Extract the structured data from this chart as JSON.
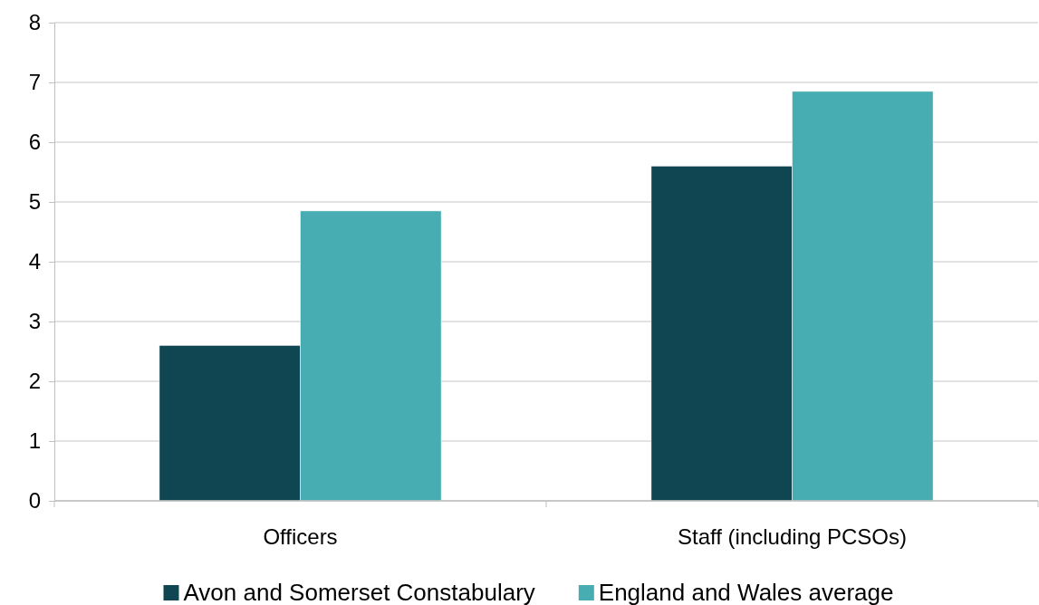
{
  "chart_data": {
    "type": "bar",
    "categories": [
      "Officers",
      "Staff (including PCSOs)"
    ],
    "series": [
      {
        "name": "Avon and Somerset Constabulary",
        "color": "#104652",
        "values": [
          2.6,
          5.6
        ]
      },
      {
        "name": "England and Wales average",
        "color": "#48adb2",
        "values": [
          4.85,
          6.85
        ]
      }
    ],
    "ylim": [
      0,
      8
    ],
    "yticks": [
      0,
      1,
      2,
      3,
      4,
      5,
      6,
      7,
      8
    ],
    "grid": "y",
    "legend": "bottom"
  }
}
